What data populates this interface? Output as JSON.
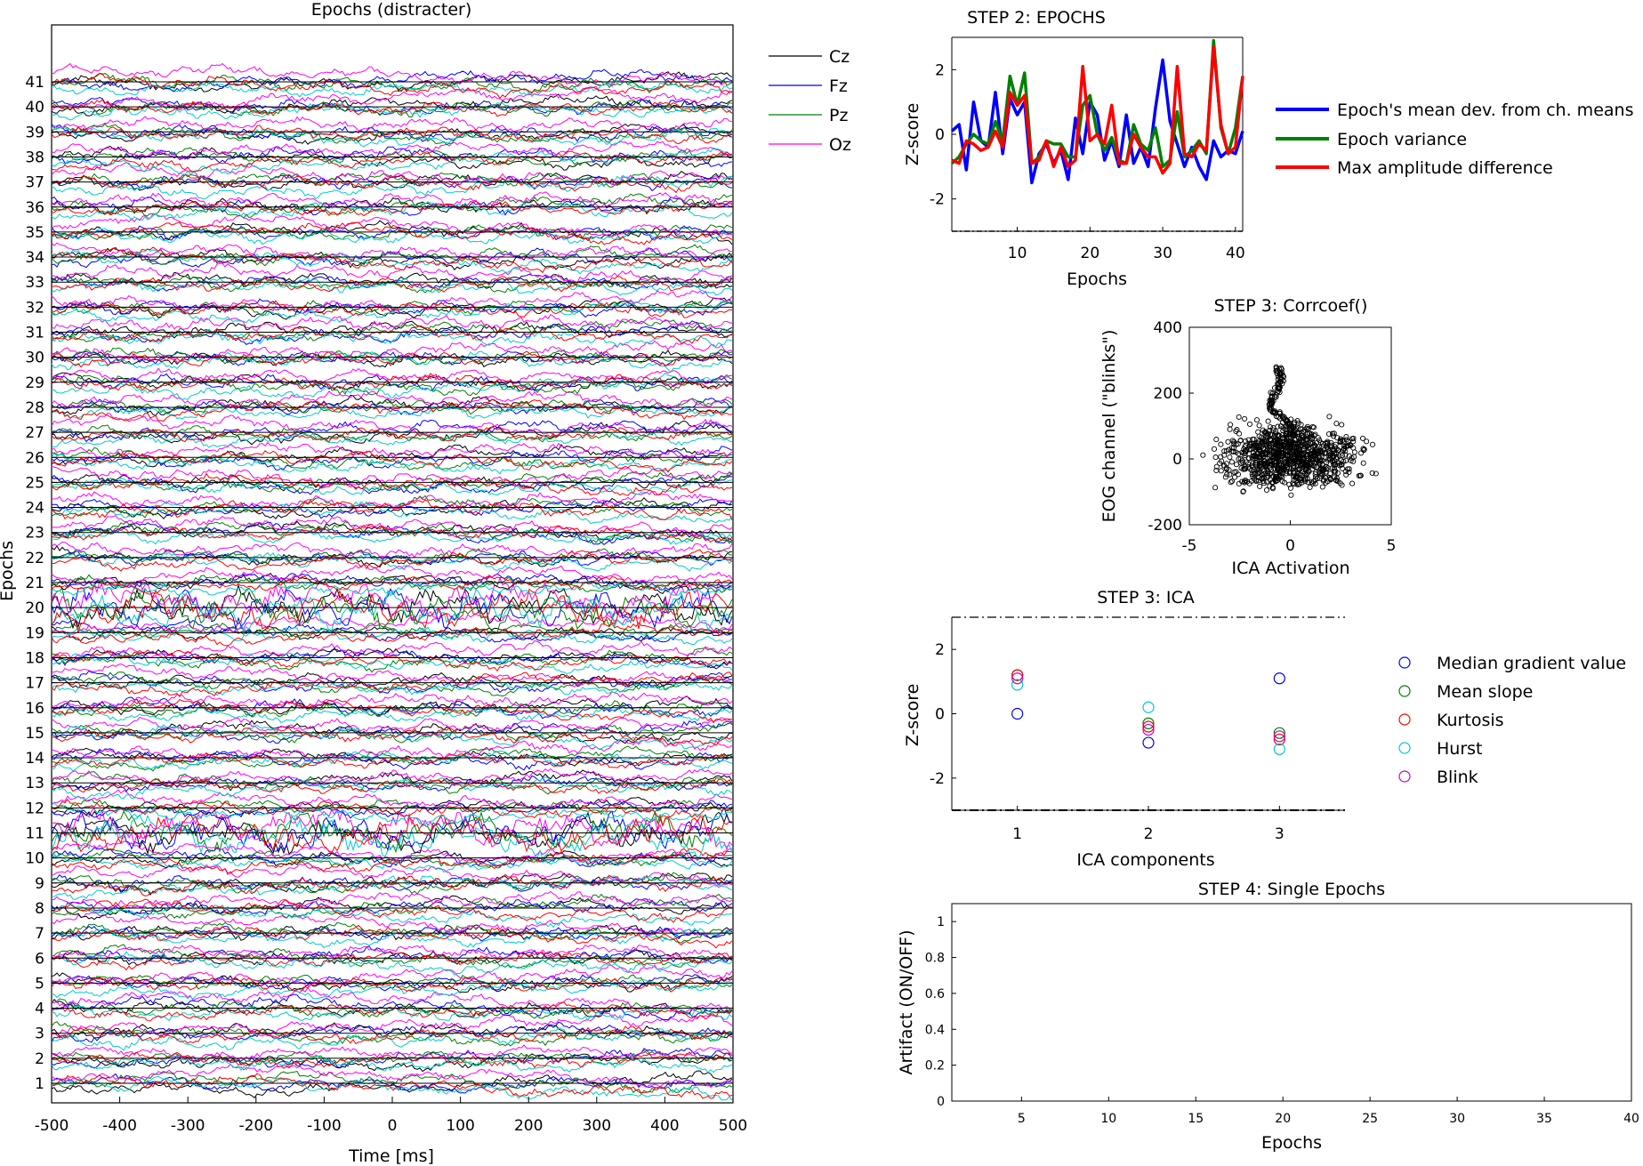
{
  "chart_data": [
    {
      "id": "epochs_plot",
      "type": "line",
      "title": "Epochs (distracter)",
      "xlabel": "Time [ms]",
      "ylabel": "Epochs",
      "xlim": [
        -500,
        500
      ],
      "xticks": [
        "-500",
        "-400",
        "-300",
        "-200",
        "-100",
        "0",
        "100",
        "200",
        "300",
        "400",
        "500"
      ],
      "epoch_labels": [
        "1",
        "2",
        "3",
        "4",
        "5",
        "6",
        "7",
        "8",
        "9",
        "10",
        "11",
        "12",
        "13",
        "14",
        "15",
        "16",
        "17",
        "18",
        "19",
        "20",
        "21",
        "22",
        "23",
        "24",
        "25",
        "26",
        "27",
        "28",
        "29",
        "30",
        "31",
        "32",
        "33",
        "34",
        "35",
        "36",
        "37",
        "38",
        "39",
        "40",
        "41"
      ],
      "legend": [
        "Cz",
        "Fz",
        "Pz",
        "Oz"
      ],
      "legend_placement": "outside-right",
      "colors": {
        "Cz": "#000000",
        "Fz": "#0000ff",
        "Pz": "#008000",
        "Oz": "#ff00ff",
        "hurst": "#00cccc",
        "red": "#ff0000"
      },
      "artifact_epochs": [
        11,
        20
      ]
    },
    {
      "id": "step2",
      "type": "line",
      "title": "STEP 2: EPOCHS",
      "xlabel": "Epochs",
      "ylabel": "Z-score",
      "xlim": [
        1,
        41
      ],
      "ylim": [
        -3,
        3
      ],
      "xticks": [
        "10",
        "20",
        "30",
        "40"
      ],
      "yticks": [
        "2",
        "0",
        "-2"
      ],
      "thresholds": [
        3,
        -3
      ],
      "series": [
        {
          "name": "Epoch's mean dev. from ch. means",
          "color": "#0000ff",
          "values": [
            0.1,
            0.3,
            -1.1,
            1.0,
            -0.2,
            -0.4,
            1.3,
            -0.6,
            1.1,
            0.6,
            1.0,
            -1.5,
            -0.6,
            -0.3,
            -0.9,
            -0.5,
            -1.4,
            0.5,
            -0.6,
            1.0,
            0.6,
            -0.8,
            -0.2,
            -1.0,
            0.6,
            -0.9,
            -0.4,
            -1.0,
            0.8,
            2.3,
            0.4,
            -0.3,
            -1.0,
            -0.4,
            -1.0,
            -1.4,
            -0.2,
            -0.7,
            -0.5,
            -0.6,
            0.1
          ]
        },
        {
          "name": "Epoch variance",
          "color": "#008000",
          "values": [
            -0.9,
            -0.7,
            -0.3,
            0.0,
            -0.2,
            -0.3,
            0.4,
            -0.2,
            1.8,
            0.9,
            1.9,
            -0.9,
            -0.7,
            -0.2,
            -0.3,
            -0.3,
            -0.7,
            -0.7,
            0.9,
            1.2,
            0.0,
            -0.5,
            -0.1,
            -0.8,
            -0.9,
            0.3,
            -0.3,
            -0.5,
            0.2,
            -1.0,
            -0.8,
            0.7,
            -0.7,
            -0.5,
            -0.2,
            -0.6,
            2.9,
            0.2,
            -0.6,
            0.2,
            1.8
          ]
        },
        {
          "name": "Max amplitude difference",
          "color": "#ff0000",
          "values": [
            -0.8,
            -0.9,
            -0.2,
            -0.3,
            -0.5,
            -0.4,
            0.1,
            -0.4,
            1.3,
            0.9,
            1.2,
            -0.9,
            -0.8,
            -0.2,
            -1.0,
            -0.4,
            -1.0,
            -0.8,
            2.1,
            -0.2,
            0.0,
            -0.3,
            0.9,
            -0.9,
            -0.9,
            0.0,
            -0.4,
            -0.7,
            -0.7,
            -1.2,
            -0.9,
            2.1,
            -0.6,
            -0.7,
            -0.3,
            -0.5,
            2.7,
            0.3,
            -0.6,
            -0.4,
            1.8
          ]
        }
      ]
    },
    {
      "id": "step3_corr",
      "type": "scatter",
      "title": "STEP 3: Corrcoef()",
      "xlabel": "ICA Activation",
      "ylabel": "EOG channel (\"blinks\")",
      "xlim": [
        -5,
        5
      ],
      "ylim": [
        -200,
        400
      ],
      "xticks": [
        "-5",
        "0",
        "5"
      ],
      "yticks": [
        "400",
        "200",
        "0",
        "-200"
      ],
      "color": "#000000"
    },
    {
      "id": "step3_ica",
      "type": "scatter",
      "title": "STEP 3: ICA",
      "xlabel": "ICA components",
      "ylabel": "Z-score",
      "xlim": [
        0.5,
        3.5
      ],
      "ylim": [
        -3,
        3
      ],
      "xticks": [
        "1",
        "2",
        "3"
      ],
      "yticks": [
        "2",
        "0",
        "-2"
      ],
      "thresholds": [
        3,
        -3
      ],
      "series": [
        {
          "name": "Median gradient value",
          "color": "#0000ff",
          "values": [
            0.0,
            -0.9,
            1.1
          ]
        },
        {
          "name": "Mean slope",
          "color": "#008000",
          "values": [
            1.2,
            -0.3,
            -0.6
          ]
        },
        {
          "name": "Kurtosis",
          "color": "#ff0000",
          "values": [
            1.2,
            -0.4,
            -0.8
          ]
        },
        {
          "name": "Hurst",
          "color": "#00cccc",
          "values": [
            0.9,
            0.2,
            -1.1
          ]
        },
        {
          "name": "Blink",
          "color": "#cc00cc",
          "values": [
            1.1,
            -0.5,
            -0.7
          ]
        }
      ]
    },
    {
      "id": "step4",
      "type": "line",
      "title": "STEP 4: Single Epochs",
      "xlabel": "Epochs",
      "ylabel": "Artifact (ON/OFF)",
      "xlim": [
        1,
        40
      ],
      "ylim": [
        0,
        1.1
      ],
      "xticks": [
        "5",
        "10",
        "15",
        "20",
        "25",
        "30",
        "35",
        "40"
      ],
      "yticks": [
        "0",
        "0.2",
        "0.4",
        "0.6",
        "0.8",
        "1"
      ]
    }
  ]
}
